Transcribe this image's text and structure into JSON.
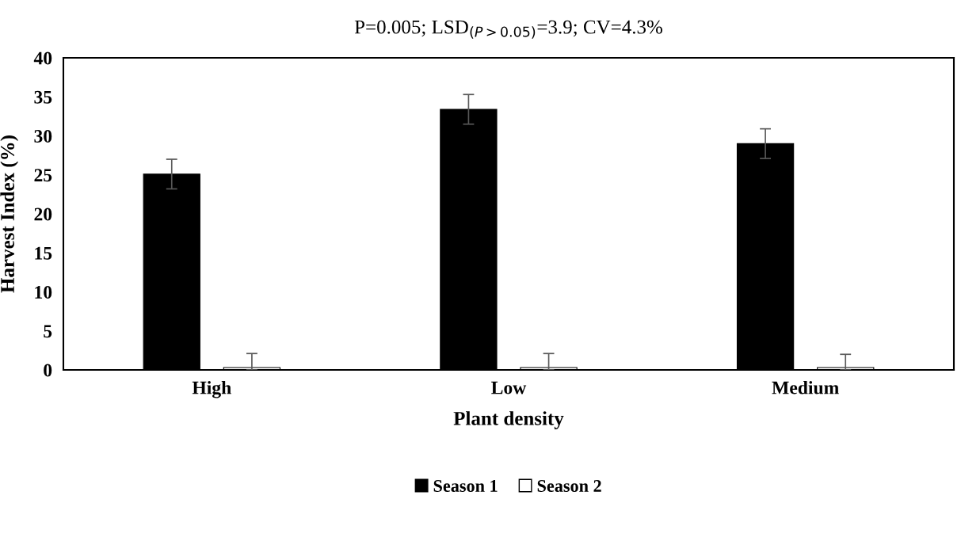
{
  "chart_data": {
    "type": "bar",
    "title": "P=0.005; LSD$_{(P>0.05)}$=3.9; CV=4.3%",
    "xlabel": "Plant density",
    "ylabel": "Harvest Index (%)",
    "categories": [
      "High",
      "Low",
      "Medium"
    ],
    "series": [
      {
        "name": "Season 1",
        "color": "#000000",
        "values": [
          25.1,
          33.4,
          29.0
        ],
        "errors": [
          1.9,
          1.9,
          1.9
        ]
      },
      {
        "name": "Season 2",
        "color": "#ffffff",
        "values": [
          0.3,
          0.3,
          0.3
        ],
        "errors": [
          [
            0,
            2.1
          ],
          [
            0,
            2.1
          ],
          [
            0,
            2.0
          ]
        ]
      }
    ],
    "ylim": [
      0,
      40
    ],
    "yticks": [
      0,
      5,
      10,
      15,
      20,
      25,
      30,
      35,
      40
    ],
    "grid": false,
    "legend": "bottom"
  }
}
